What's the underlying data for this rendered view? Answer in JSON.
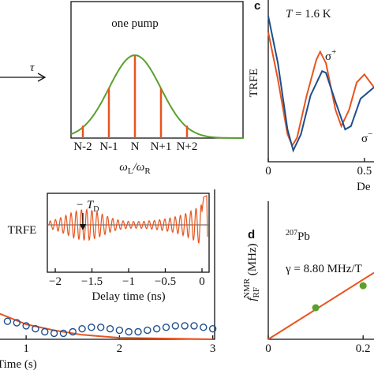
{
  "panel_b": {
    "arrow_label": "τ",
    "title": "one pump",
    "x_labels": [
      "N-2",
      "N-1",
      "N",
      "N+1",
      "N+2"
    ],
    "x_axis_label": [
      "ω",
      "L",
      "/ω",
      "R"
    ],
    "comb": [
      0.15,
      0.6,
      1,
      0.6,
      0.15
    ],
    "comb_color": "#e8541e",
    "envelope_color": "#5aa02c"
  },
  "panel_c": {
    "label": "c",
    "temperature_label": [
      "T",
      " = 1.6 K"
    ],
    "y_label": "TRFE",
    "x_label": "De",
    "xlim": [
      0,
      0.55
    ],
    "xticks": [
      0,
      0.5
    ],
    "ylim": [
      0,
      1
    ],
    "series": [
      {
        "name": "σ+",
        "color": "#e8541e",
        "x": [
          0,
          0.05,
          0.1,
          0.125,
          0.15,
          0.2,
          0.25,
          0.27,
          0.3,
          0.35,
          0.38,
          0.42,
          0.46,
          0.5,
          0.55
        ],
        "values": [
          0.8,
          0.51,
          0.17,
          0.1,
          0.15,
          0.41,
          0.63,
          0.68,
          0.61,
          0.32,
          0.22,
          0.32,
          0.49,
          0.54,
          0.46
        ]
      },
      {
        "name": "σ−",
        "color": "#1f4e8c",
        "x": [
          0,
          0.05,
          0.1,
          0.13,
          0.17,
          0.22,
          0.28,
          0.3,
          0.35,
          0.4,
          0.43,
          0.48,
          0.55
        ],
        "values": [
          0.9,
          0.61,
          0.2,
          0.07,
          0.17,
          0.41,
          0.56,
          0.55,
          0.37,
          0.2,
          0.22,
          0.39,
          0.46
        ]
      }
    ]
  },
  "panel_d": {
    "label": "d",
    "isotope": [
      "207",
      "Pb"
    ],
    "gamma_label": "γ = 8.80 MHz/T",
    "y_label": [
      "f",
      "RF",
      "NMR",
      " (MHz)"
    ],
    "xlim": [
      0,
      0.223
    ],
    "xticks": [
      0,
      0.2
    ],
    "ylim": [
      0,
      4.07
    ],
    "x": [
      0.1,
      0.2
    ],
    "values": [
      0.93,
      1.58
    ],
    "point_color": "#5aa02c",
    "fit_slope": 8.8,
    "fit_color": "#e8541e"
  },
  "panel_e": {
    "x_label": "Time (s)",
    "xlim": [
      0.72,
      3.02
    ],
    "xticks": [
      1,
      2,
      3
    ],
    "ylim": [
      0,
      1
    ],
    "circles": {
      "color": "#1f4e8c",
      "x": [
        0.8,
        0.9,
        1.0,
        1.1,
        1.2,
        1.3,
        1.4,
        1.5,
        1.6,
        1.7,
        1.8,
        1.9,
        2.0,
        2.1,
        2.2,
        2.3,
        2.4,
        2.5,
        2.6,
        2.7,
        2.8,
        2.9,
        3.0
      ],
      "values": [
        0.12,
        0.11,
        0.09,
        0.07,
        0.05,
        0.04,
        0.04,
        0.05,
        0.07,
        0.08,
        0.08,
        0.07,
        0.06,
        0.05,
        0.05,
        0.06,
        0.07,
        0.08,
        0.09,
        0.09,
        0.09,
        0.08,
        0.07
      ]
    },
    "curve": {
      "color": "#e8541e",
      "x": [
        0.72,
        1.0,
        1.3,
        1.6,
        2.0,
        2.5,
        3.0
      ],
      "values": [
        0.17,
        0.1,
        0.06,
        0.03,
        0.01,
        0.005,
        0
      ]
    },
    "inset": {
      "y_label": "TRFE",
      "x_label": "Delay time (ns)",
      "marker": [
        "− T",
        "D"
      ],
      "xlim": [
        -2.108,
        0.097
      ],
      "xticks": [
        {
          "value": -2,
          "label": "−2"
        },
        {
          "value": -1.5,
          "label": "−1.5"
        },
        {
          "value": -1,
          "label": "−1"
        },
        {
          "value": -0.5,
          "label": "−0.5"
        },
        0
      ],
      "color": "#e8541e"
    }
  }
}
